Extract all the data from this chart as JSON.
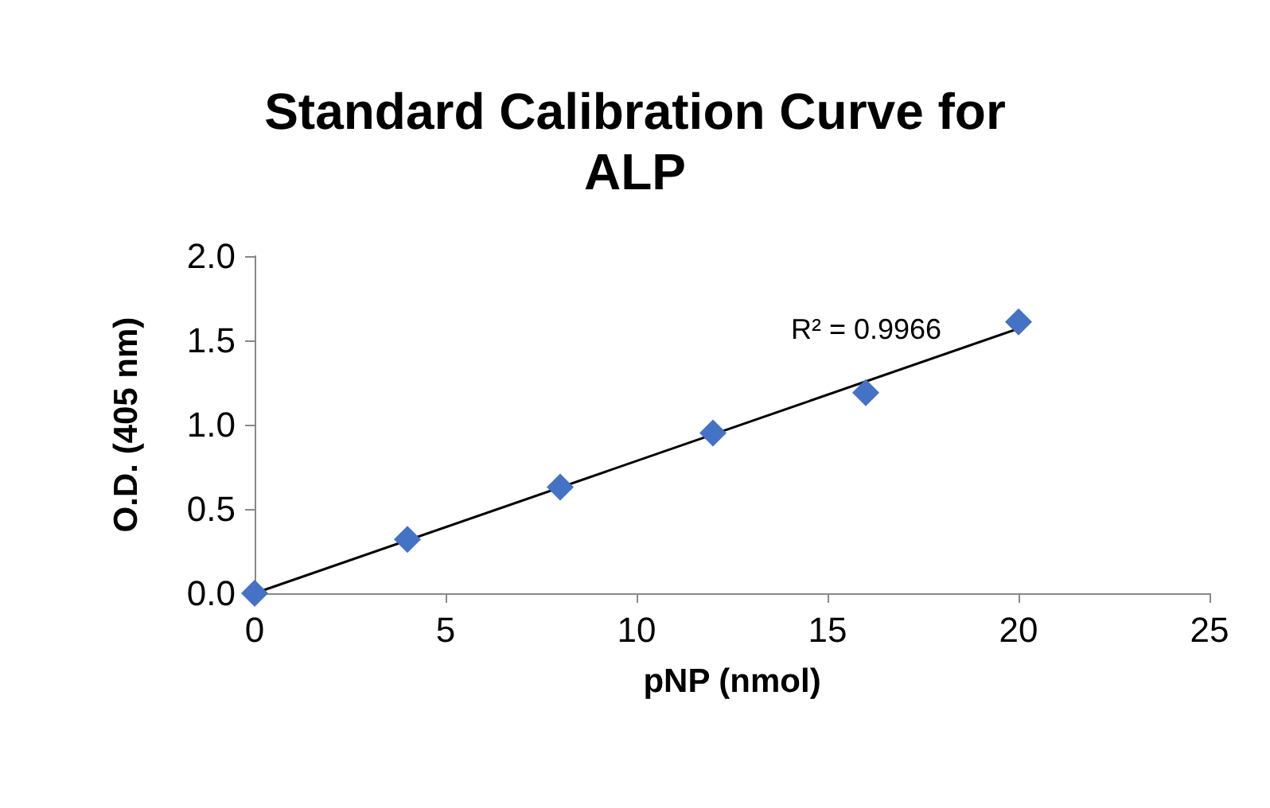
{
  "chart_data": {
    "type": "scatter",
    "title": "Standard Calibration Curve for\nALP",
    "xlabel": "pNP (nmol)",
    "ylabel": "O.D. (405 nm)",
    "x": [
      0,
      4,
      8,
      12,
      16,
      20
    ],
    "series": [
      {
        "type": "scatter",
        "color": "#4472c4",
        "marker": "diamond",
        "values": [
          0.0,
          0.32,
          0.63,
          0.95,
          1.19,
          1.61
        ]
      },
      {
        "type": "line",
        "color": "#000000",
        "marker": "none",
        "line_style": "solid",
        "x": [
          0,
          20
        ],
        "values": [
          0.0,
          1.57
        ]
      }
    ],
    "xlim": [
      0,
      25
    ],
    "xticks": [
      0,
      5,
      10,
      15,
      20,
      25
    ],
    "ylim": [
      0,
      2
    ],
    "yticks": [
      {
        "value": 0,
        "label": "0.0"
      },
      {
        "value": 0.5,
        "label": "0.5"
      },
      {
        "value": 1,
        "label": "1.0"
      },
      {
        "value": 1.5,
        "label": "1.5"
      },
      {
        "value": 2,
        "label": "2.0"
      }
    ],
    "annotations": [
      "R² = 0.9966"
    ],
    "grid": false
  }
}
